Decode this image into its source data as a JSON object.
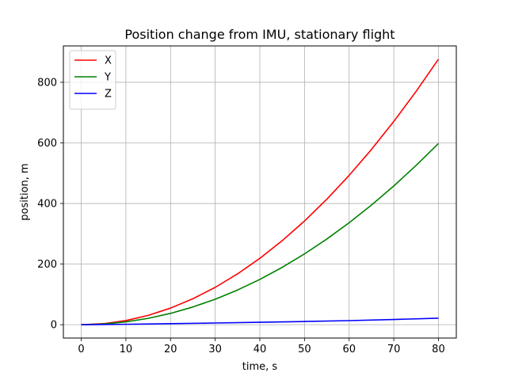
{
  "chart_data": {
    "type": "line",
    "title": "Position change from IMU, stationary flight",
    "xlabel": "time, s",
    "ylabel": "position, m",
    "xlim": [
      -4,
      84
    ],
    "ylim": [
      -44,
      920
    ],
    "xticks": [
      0,
      10,
      20,
      30,
      40,
      50,
      60,
      70,
      80
    ],
    "yticks": [
      0,
      200,
      400,
      600,
      800
    ],
    "grid": true,
    "legend_position": "top-left",
    "series": [
      {
        "name": "X",
        "color": "#ff0000",
        "x": [
          0,
          5,
          10,
          15,
          20,
          25,
          30,
          35,
          40,
          45,
          50,
          55,
          60,
          65,
          70,
          75,
          80
        ],
        "y": [
          0,
          3.4,
          13.7,
          30.8,
          54.8,
          85.6,
          123.2,
          167.7,
          219.0,
          277.2,
          342.2,
          414.1,
          492.8,
          578.3,
          670.7,
          770.0,
          876.0
        ]
      },
      {
        "name": "Y",
        "color": "#008000",
        "x": [
          0,
          5,
          10,
          15,
          20,
          25,
          30,
          35,
          40,
          45,
          50,
          55,
          60,
          65,
          70,
          75,
          80
        ],
        "y": [
          0,
          2.3,
          9.3,
          21.0,
          37.4,
          58.4,
          84.1,
          114.5,
          149.5,
          189.2,
          233.6,
          282.7,
          336.4,
          394.8,
          457.9,
          525.6,
          598.0
        ]
      },
      {
        "name": "Z",
        "color": "#0000ff",
        "x": [
          0,
          10,
          20,
          30,
          40,
          50,
          60,
          70,
          80
        ],
        "y": [
          0,
          1.4,
          3.5,
          5.6,
          8.0,
          10.6,
          13.5,
          17.2,
          21.5
        ]
      }
    ]
  }
}
